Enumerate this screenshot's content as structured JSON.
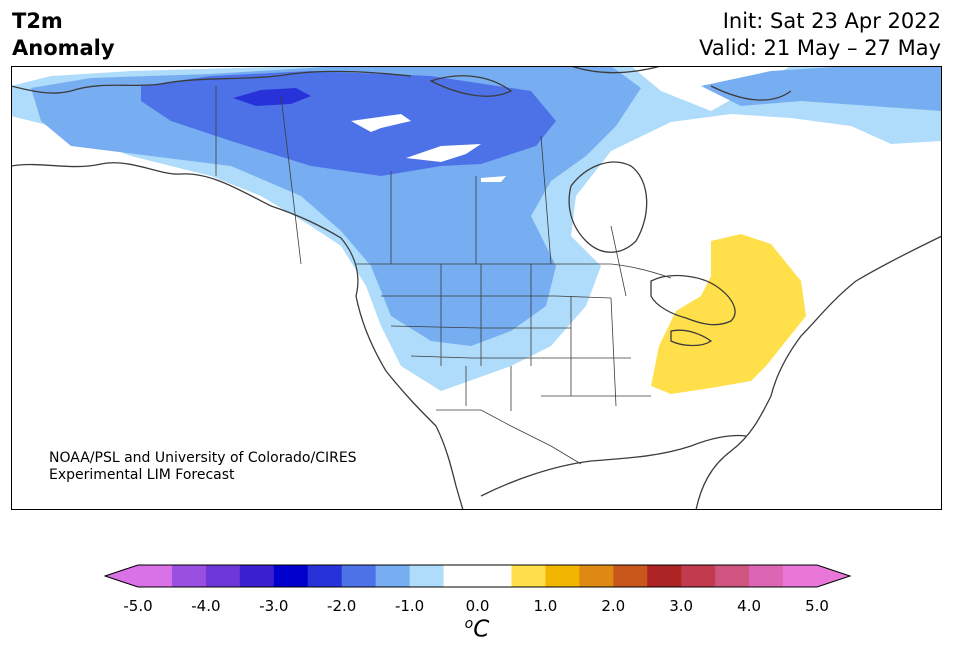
{
  "title": {
    "variable": "T2m",
    "metric": "Anomaly",
    "init": "Init: Sat 23 Apr 2022",
    "valid": "Valid: 21 May – 27 May"
  },
  "credit": {
    "line1": "NOAA/PSL and University of Colorado/CIRES",
    "line2": "Experimental LIM Forecast"
  },
  "colorbar": {
    "ticks": [
      "-5.0",
      "-4.0",
      "-3.0",
      "-2.0",
      "-1.0",
      "0.0",
      "1.0",
      "2.0",
      "3.0",
      "4.0",
      "5.0"
    ],
    "unit_base": "C",
    "unit_sup": "o",
    "colors": [
      "#d872e6",
      "#9b4fe0",
      "#6d37da",
      "#3a1fd1",
      "#0000cd",
      "#2733d8",
      "#4d72e8",
      "#76aef1",
      "#aedcfa",
      "#ffffff",
      "#ffffff",
      "#ffe04a",
      "#f2b600",
      "#de8a12",
      "#c9561a",
      "#ad2424",
      "#c23a4d",
      "#d05480",
      "#dc66b4",
      "#e877d8"
    ],
    "under_color": "#d872e6",
    "over_color": "#e877d8"
  },
  "map_colors": {
    "land_bg": "#ffffff",
    "coast": "#3c3c3c",
    "light_blue": "#aedcfa",
    "mid_blue": "#76aef1",
    "blue": "#4d72e8",
    "deep_blue": "#2733d8",
    "yellow": "#ffe04a"
  }
}
